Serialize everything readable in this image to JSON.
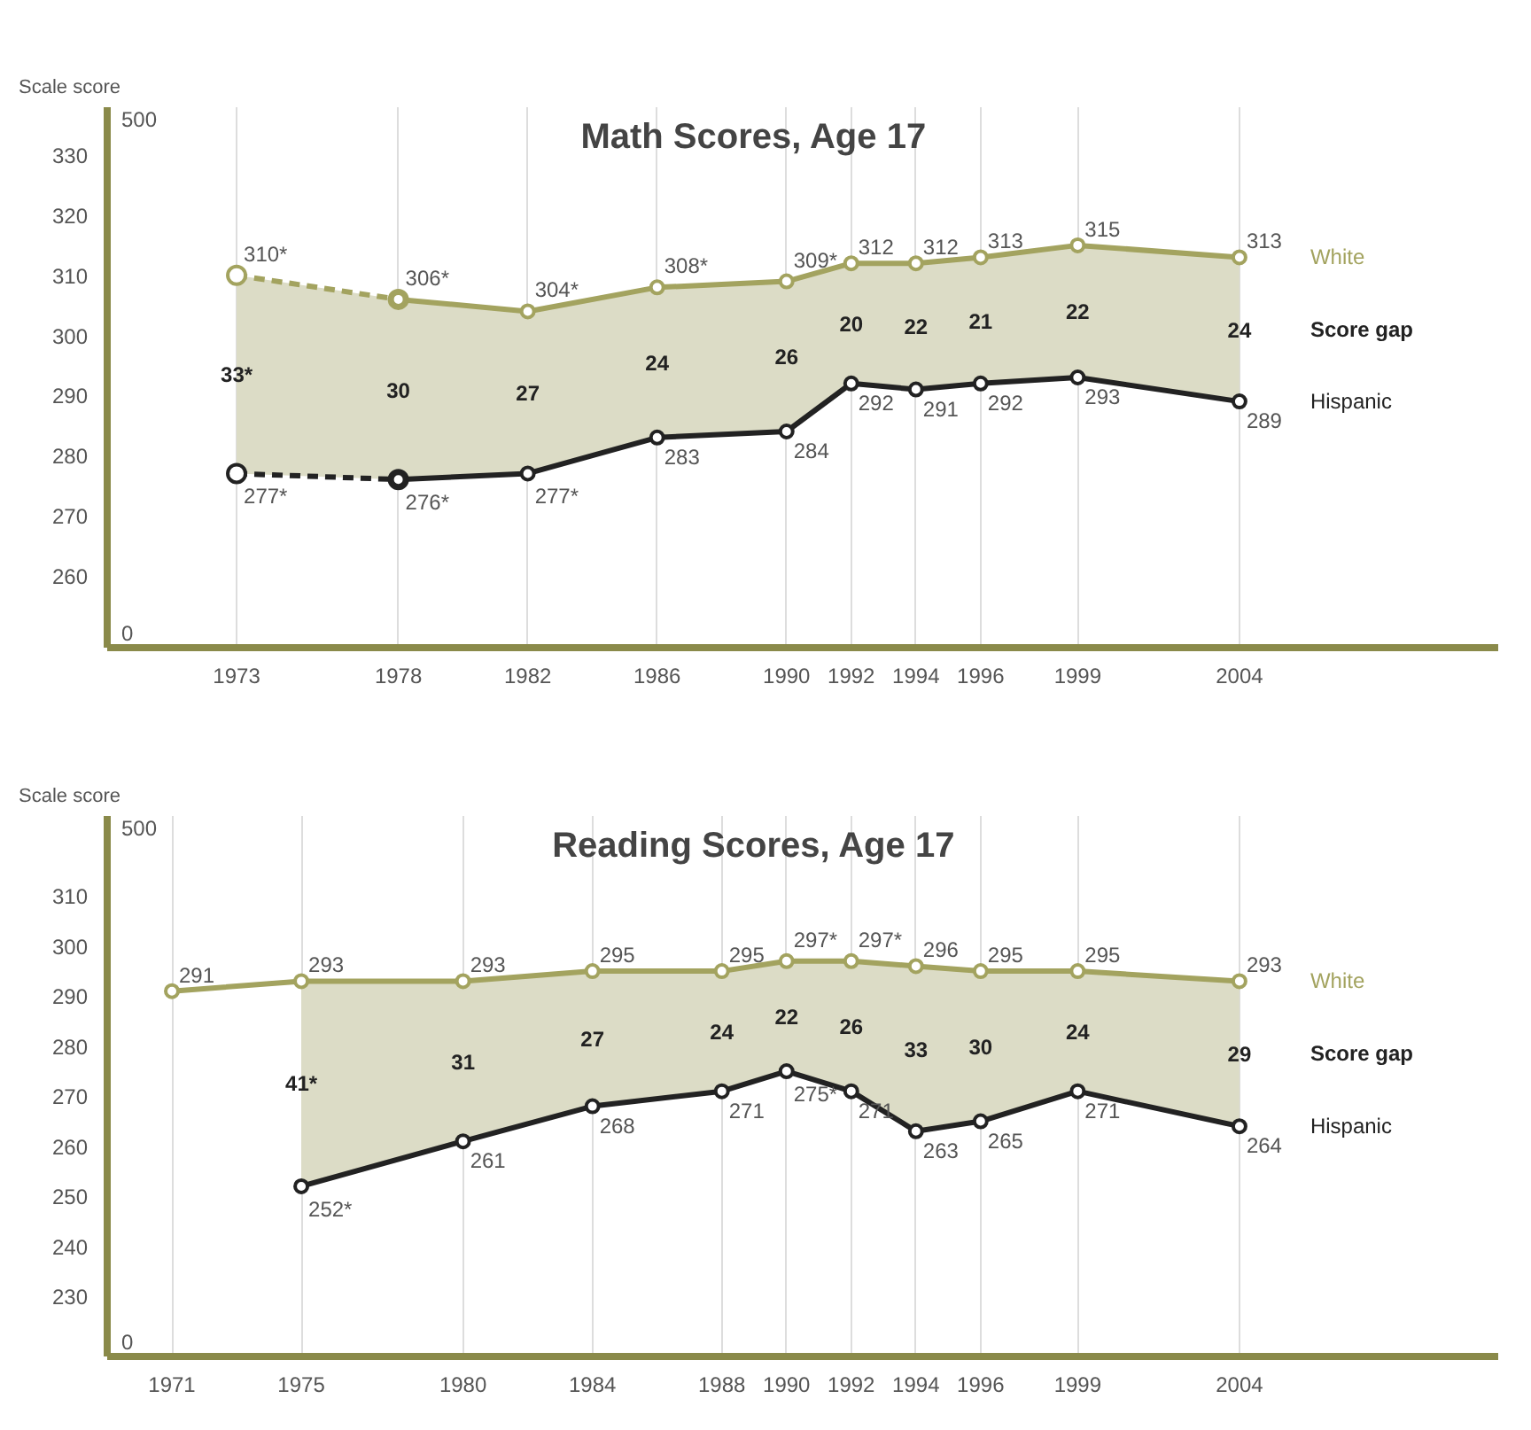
{
  "chart_data": [
    {
      "type": "line",
      "title": "Math Scores, Age 17",
      "ylabel": "Scale score",
      "x": [
        1973,
        1978,
        1982,
        1986,
        1990,
        1992,
        1994,
        1996,
        1999,
        2004
      ],
      "xlim": [
        1969,
        2012
      ],
      "xticks": [
        1973,
        1978,
        1982,
        1986,
        1990,
        1992,
        1994,
        1996,
        1999,
        2004
      ],
      "ylim": [
        248,
        338
      ],
      "yticks": [
        260,
        270,
        280,
        290,
        300,
        310,
        320,
        330
      ],
      "grid": "x",
      "marker": "circle",
      "annotations": [
        "500",
        "0",
        "33*",
        "30",
        "27",
        "24",
        "26",
        "20",
        "22",
        "21",
        "22",
        "24",
        "Score gap"
      ],
      "series": [
        {
          "color": "#a3a35f",
          "line_style": "dashed",
          "values": [
            310,
            306,
            null,
            null,
            null,
            null,
            null,
            null,
            null,
            null
          ],
          "value_labels": [
            "310*",
            null,
            null,
            null,
            null,
            null,
            null,
            null,
            null,
            null
          ]
        },
        {
          "name": "White",
          "color": "#a3a35f",
          "line_style": "solid",
          "values": [
            null,
            306,
            304,
            308,
            309,
            312,
            312,
            313,
            315,
            313
          ],
          "value_labels": [
            null,
            "306*",
            "304*",
            "308*",
            "309*",
            "312",
            "312",
            "313",
            "315",
            "313"
          ],
          "lower": [
            277,
            276,
            277,
            283,
            284,
            292,
            291,
            292,
            293,
            289
          ],
          "upper": [
            310,
            306,
            304,
            308,
            309,
            312,
            312,
            313,
            315,
            313
          ]
        },
        {
          "color": "#222222",
          "line_style": "dashed",
          "values": [
            277,
            276,
            null,
            null,
            null,
            null,
            null,
            null,
            null,
            null
          ],
          "value_labels": [
            "277*",
            null,
            null,
            null,
            null,
            null,
            null,
            null,
            null,
            null
          ]
        },
        {
          "name": "Hispanic",
          "color": "#222222",
          "line_style": "solid",
          "values": [
            null,
            276,
            277,
            283,
            284,
            292,
            291,
            292,
            293,
            289
          ],
          "value_labels": [
            null,
            "276*",
            "277*",
            "283",
            "284",
            "292",
            "291",
            "292",
            "293",
            "289"
          ]
        }
      ]
    },
    {
      "type": "line",
      "title": "Reading Scores, Age 17",
      "ylabel": "Scale score",
      "x": [
        1971,
        1975,
        1980,
        1984,
        1988,
        1990,
        1992,
        1994,
        1996,
        1999,
        2004
      ],
      "xlim": [
        1969,
        2012
      ],
      "xticks": [
        1971,
        1975,
        1980,
        1984,
        1988,
        1990,
        1992,
        1994,
        1996,
        1999,
        2004
      ],
      "ylim": [
        218,
        326
      ],
      "yticks": [
        230,
        240,
        250,
        260,
        270,
        280,
        290,
        300,
        310
      ],
      "grid": "x",
      "marker": "circle",
      "annotations": [
        "500",
        "0",
        "41*",
        "31",
        "27",
        "24",
        "22",
        "26",
        "33",
        "30",
        "24",
        "29",
        "Score gap"
      ],
      "series": [
        {
          "name": "White",
          "color": "#a3a35f",
          "line_style": "solid",
          "values": [
            291,
            293,
            293,
            295,
            295,
            297,
            297,
            296,
            295,
            295,
            293
          ],
          "value_labels": [
            "291",
            "293",
            "293",
            "295",
            "295",
            "297*",
            "297*",
            "296",
            "295",
            "295",
            "293"
          ],
          "lower": [
            null,
            252,
            261,
            268,
            271,
            275,
            271,
            263,
            265,
            271,
            264
          ],
          "upper": [
            null,
            293,
            293,
            295,
            295,
            297,
            297,
            296,
            295,
            295,
            293
          ]
        },
        {
          "name": "Hispanic",
          "color": "#222222",
          "line_style": "solid",
          "values": [
            null,
            252,
            261,
            268,
            271,
            275,
            271,
            263,
            265,
            271,
            264
          ],
          "value_labels": [
            null,
            "252*",
            "261",
            "268",
            "271",
            "275*",
            "271",
            "263",
            "265",
            "271",
            "264"
          ]
        }
      ]
    }
  ]
}
